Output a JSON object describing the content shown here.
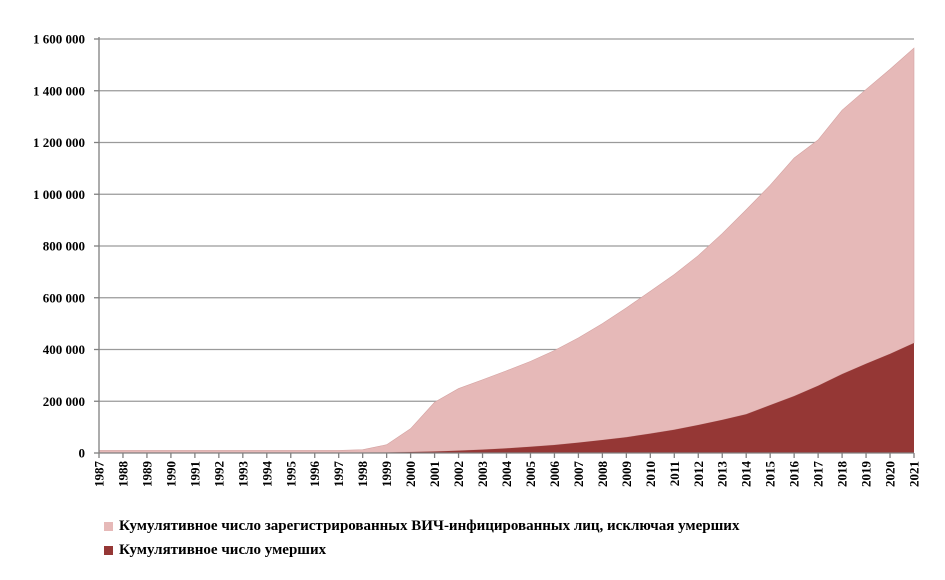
{
  "chart_data": {
    "type": "area",
    "title": "",
    "xlabel": "",
    "ylabel": "",
    "ylim": [
      0,
      1600000
    ],
    "y_ticks": [
      0,
      200000,
      400000,
      600000,
      800000,
      1000000,
      1200000,
      1400000,
      1600000
    ],
    "y_tick_labels": [
      "0",
      "200 000",
      "400 000",
      "600 000",
      "800 000",
      "1 000 000",
      "1 200 000",
      "1 400 000",
      "1 600 000"
    ],
    "grid": true,
    "legend_position": "bottom",
    "x": [
      "1987",
      "1988",
      "1989",
      "1990",
      "1991",
      "1992",
      "1993",
      "1994",
      "1995",
      "1996",
      "1997",
      "1998",
      "1999",
      "2000",
      "2001",
      "2002",
      "2003",
      "2004",
      "2005",
      "2006",
      "2007",
      "2008",
      "2009",
      "2010",
      "2011",
      "2012",
      "2013",
      "2014",
      "2015",
      "2016",
      "2017",
      "2018",
      "2019",
      "2020",
      "2021"
    ],
    "series": [
      {
        "name": "Кумулятивное число зарегистрированных ВИЧ-инфицированных лиц, исключая умерших",
        "color": "#e6b9b8",
        "values": [
          10000,
          10000,
          10000,
          10000,
          10000,
          10000,
          10000,
          10000,
          10000,
          10000,
          10000,
          12000,
          30000,
          90000,
          190000,
          240000,
          270000,
          300000,
          330000,
          365000,
          405000,
          450000,
          500000,
          550000,
          600000,
          655000,
          720000,
          790000,
          850000,
          920000,
          950000,
          1020000,
          1060000,
          1100000,
          1140000
        ]
      },
      {
        "name": "Кумулятивное число умерших",
        "color": "#953735",
        "values": [
          0,
          0,
          0,
          0,
          0,
          0,
          0,
          0,
          0,
          0,
          0,
          1000,
          2000,
          4000,
          6000,
          9000,
          13000,
          18000,
          24000,
          31000,
          40000,
          50000,
          61000,
          75000,
          90000,
          108000,
          128000,
          150000,
          185000,
          220000,
          260000,
          305000,
          345000,
          383000,
          425000
        ]
      }
    ]
  }
}
